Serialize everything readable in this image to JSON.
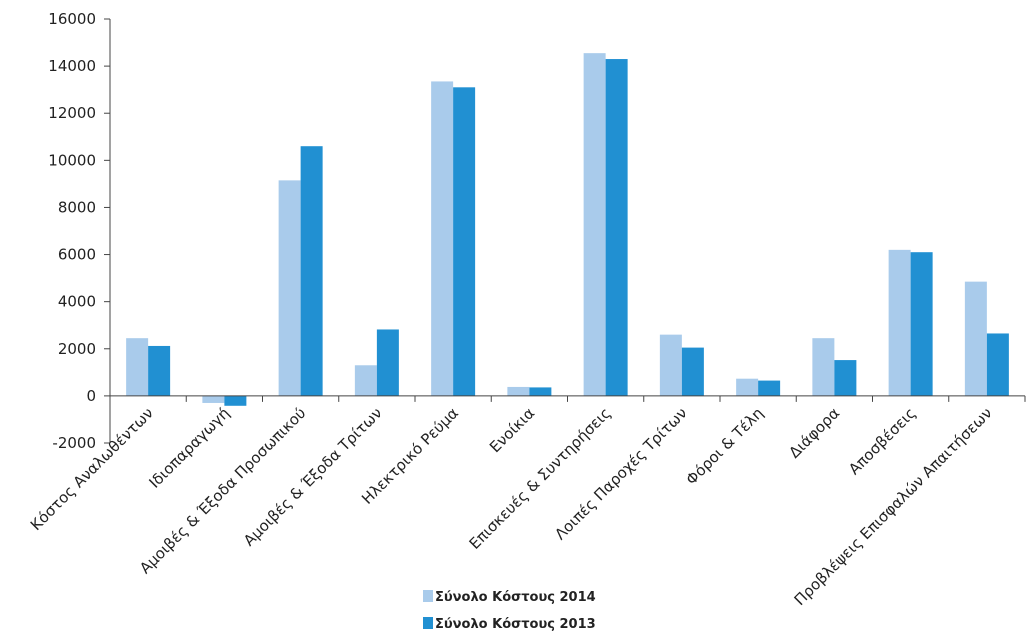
{
  "chart_data": {
    "type": "bar",
    "title": "",
    "xlabel": "",
    "ylabel": "",
    "ylim": [
      -2000,
      16000
    ],
    "yticks": [
      -2000,
      0,
      2000,
      4000,
      6000,
      8000,
      10000,
      12000,
      14000,
      16000
    ],
    "grid": false,
    "legend_position": "bottom",
    "categories": [
      "Κόστος Αναλωθέντων",
      "Ιδιοπαραγωγή",
      "Αμοιβές & Έξοδα Προσωπικού",
      "Αμοιβές & Έξοδα Τρίτων",
      "Ηλεκτρικό Ρεύμα",
      "Ενοίκια",
      "Επισκευές & Συντηρήσεις",
      "Λοιπές Παροχές Τρίτων",
      "Φόροι & Τέλη",
      "Διάφορα",
      "Αποσβέσεις",
      "Προβλέψεις Επισφαλών Απαιτήσεων"
    ],
    "series": [
      {
        "name": "Σύνολο Κόστους 2014",
        "color": "#a9cbeb",
        "values": [
          2450,
          -300,
          9150,
          1300,
          13350,
          380,
          14550,
          2600,
          730,
          2450,
          6200,
          4850
        ]
      },
      {
        "name": "Σύνολο Κόστους 2013",
        "color": "#2190d2",
        "values": [
          2120,
          -420,
          10600,
          2820,
          13100,
          360,
          14300,
          2050,
          650,
          1520,
          6100,
          2650
        ]
      }
    ]
  }
}
